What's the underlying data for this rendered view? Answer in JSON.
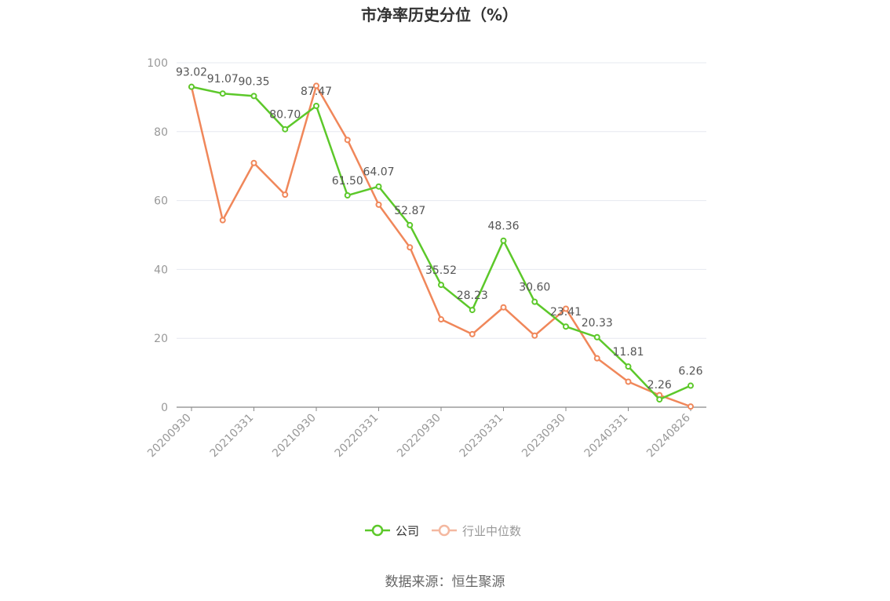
{
  "chart_data": {
    "type": "line",
    "title": "市净率历史分位（%）",
    "ylim": [
      0,
      100
    ],
    "yticks": [
      0,
      20,
      40,
      60,
      80,
      100
    ],
    "x": [
      "20200930",
      "20201231",
      "20210331",
      "20210630",
      "20210930",
      "20211231",
      "20220331",
      "20220630",
      "20220930",
      "20221230",
      "20230331",
      "20230630",
      "20230930",
      "20231229",
      "20240331",
      "20240628",
      "20240826"
    ],
    "xtick_labels": [
      "20200930",
      "20210331",
      "20210930",
      "20220331",
      "20220930",
      "20230331",
      "20230930",
      "20240331",
      "20240826"
    ],
    "grid": true,
    "legend_position": "bottom-center",
    "series": [
      {
        "name": "公司",
        "color": "#5cc82a",
        "values": [
          93.02,
          91.07,
          90.35,
          80.7,
          87.47,
          61.5,
          64.07,
          52.87,
          35.52,
          28.23,
          48.36,
          30.6,
          23.41,
          20.33,
          11.81,
          2.26,
          6.26
        ],
        "labels": [
          "93.02",
          "91.07",
          "90.35",
          "80.70",
          "87.47",
          "61.50",
          "64.07",
          "52.87",
          "35.52",
          "28.23",
          "48.36",
          "30.60",
          "23.41",
          "20.33",
          "11.81",
          "2.26",
          "6.26"
        ]
      },
      {
        "name": "行业中位数",
        "color": "#f0875a",
        "values": [
          93.0,
          54.3,
          70.9,
          61.7,
          93.3,
          77.6,
          58.8,
          46.4,
          25.5,
          21.2,
          29.0,
          20.8,
          28.6,
          14.2,
          7.4,
          3.5,
          0.2
        ]
      }
    ]
  },
  "legend": [
    {
      "label": "公司",
      "color": "#5cc82a",
      "text_color": "#333333"
    },
    {
      "label": "行业中位数",
      "color": "#f4b8a0",
      "text_color": "#999999"
    }
  ],
  "source_label": "数据来源：恒生聚源"
}
